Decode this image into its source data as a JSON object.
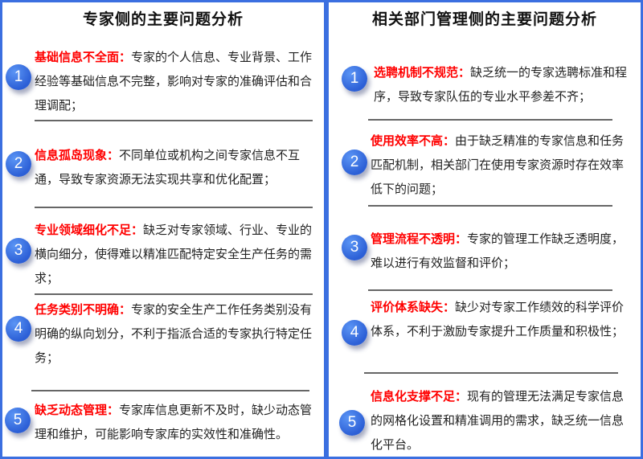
{
  "colors": {
    "border": "#3b6fe0",
    "highlight": "#ff0000",
    "circle": "#2c5fd6"
  },
  "left": {
    "title": "专家侧的主要问题分析",
    "items": [
      {
        "num": "1",
        "label": "基础信息不全面：",
        "text": "专家的个人信息、专业背景、工作经验等基础信息不完整，影响对专家的准确评估和合理调配；"
      },
      {
        "num": "2",
        "label": "信息孤岛现象：",
        "text": "不同单位或机构之间专家信息不互通，导致专家资源无法实现共享和优化配置；"
      },
      {
        "num": "3",
        "label": "专业领域细化不足：",
        "text": "缺乏对专家领域、行业、专业的横向细分，使得难以精准匹配特定安全生产任务的需求；"
      },
      {
        "num": "4",
        "label": "任务类别不明确：",
        "text": "专家的安全生产工作任务类别没有明确的纵向划分，不利于指派合适的专家执行特定任务；"
      },
      {
        "num": "5",
        "label": "缺乏动态管理：",
        "text": "专家库信息更新不及时，缺少动态管理和维护，可能影响专家库的实效性和准确性。"
      }
    ]
  },
  "right": {
    "title": "相关部门管理侧的主要问题分析",
    "items": [
      {
        "num": "1",
        "label": "选聘机制不规范：",
        "text": "缺乏统一的专家选聘标准和程序，导致专家队伍的专业水平参差不齐；"
      },
      {
        "num": "2",
        "label": "使用效率不高：",
        "text": "由于缺乏精准的专家信息和任务匹配机制，相关部门在使用专家资源时存在效率低下的问题；"
      },
      {
        "num": "3",
        "label": "管理流程不透明：",
        "text": "专家的管理工作缺乏透明度，难以进行有效监督和评价；"
      },
      {
        "num": "4",
        "label": "评价体系缺失：",
        "text": "缺少对专家工作绩效的科学评价体系，不利于激励专家提升工作质量和积极性；"
      },
      {
        "num": "5",
        "label": "信息化支撑不足：",
        "text": "现有的管理无法满足专家信息的网格化设置和精准调用的需求，缺乏统一信息化平台。"
      }
    ]
  }
}
